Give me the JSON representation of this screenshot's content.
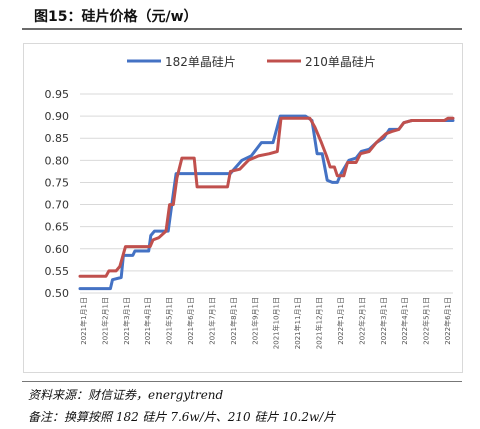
{
  "figure": {
    "title": "图15：硅片价格（元/w）"
  },
  "notes": {
    "source": "资料来源：财信证券，energytrend",
    "remark": "备注：换算按照 182 硅片 7.6w/片、210 硅片 10.2w/片"
  },
  "chart_data": {
    "type": "line",
    "title": "",
    "xlabel": "",
    "ylabel": "",
    "ylim": [
      0.5,
      0.95
    ],
    "yticks": [
      "0.50",
      "0.55",
      "0.60",
      "0.65",
      "0.70",
      "0.75",
      "0.80",
      "0.85",
      "0.90",
      "0.95"
    ],
    "grid": true,
    "legend_position": "top",
    "x_tick_labels": [
      "2021年1月1日",
      "2021年2月1日",
      "2021年3月1日",
      "2021年4月1日",
      "2021年5月1日",
      "2021年6月1日",
      "2021年7月1日",
      "2021年8月1日",
      "2021年9月1日",
      "2021年10月1日",
      "2021年11月1日",
      "2021年12月1日",
      "2022年1月1日",
      "2022年2月1日",
      "2022年3月1日",
      "2022年4月1日",
      "2022年5月1日",
      "2022年6月1日"
    ],
    "x_start": "2021-01-01",
    "x_end": "2022-06-01",
    "series": [
      {
        "name": "182单晶硅片",
        "color": "#4472c4",
        "points": [
          [
            "2021-01-01",
            0.51
          ],
          [
            "2021-02-12",
            0.51
          ],
          [
            "2021-02-15",
            0.53
          ],
          [
            "2021-02-27",
            0.535
          ],
          [
            "2021-03-02",
            0.585
          ],
          [
            "2021-03-15",
            0.585
          ],
          [
            "2021-03-18",
            0.595
          ],
          [
            "2021-04-06",
            0.595
          ],
          [
            "2021-04-09",
            0.63
          ],
          [
            "2021-04-14",
            0.64
          ],
          [
            "2021-05-03",
            0.64
          ],
          [
            "2021-05-08",
            0.7
          ],
          [
            "2021-05-14",
            0.77
          ],
          [
            "2021-06-20",
            0.77
          ],
          [
            "2021-06-28",
            0.77
          ],
          [
            "2021-07-28",
            0.77
          ],
          [
            "2021-08-02",
            0.78
          ],
          [
            "2021-08-13",
            0.8
          ],
          [
            "2021-08-26",
            0.81
          ],
          [
            "2021-09-09",
            0.84
          ],
          [
            "2021-09-25",
            0.84
          ],
          [
            "2021-10-05",
            0.9
          ],
          [
            "2021-11-09",
            0.9
          ],
          [
            "2021-11-18",
            0.89
          ],
          [
            "2021-11-25",
            0.815
          ],
          [
            "2021-12-02",
            0.815
          ],
          [
            "2021-12-09",
            0.755
          ],
          [
            "2021-12-16",
            0.75
          ],
          [
            "2021-12-23",
            0.75
          ],
          [
            "2021-12-28",
            0.77
          ],
          [
            "2022-01-08",
            0.8
          ],
          [
            "2022-01-18",
            0.805
          ],
          [
            "2022-01-25",
            0.82
          ],
          [
            "2022-02-05",
            0.825
          ],
          [
            "2022-02-15",
            0.84
          ],
          [
            "2022-02-25",
            0.85
          ],
          [
            "2022-03-05",
            0.87
          ],
          [
            "2022-03-18",
            0.87
          ],
          [
            "2022-03-25",
            0.885
          ],
          [
            "2022-04-05",
            0.89
          ],
          [
            "2022-06-01",
            0.89
          ]
        ]
      },
      {
        "name": "210单晶硅片",
        "color": "#c0504d",
        "points": [
          [
            "2021-01-01",
            0.538
          ],
          [
            "2021-02-06",
            0.538
          ],
          [
            "2021-02-10",
            0.55
          ],
          [
            "2021-02-20",
            0.55
          ],
          [
            "2021-02-25",
            0.56
          ],
          [
            "2021-03-05",
            0.605
          ],
          [
            "2021-04-08",
            0.605
          ],
          [
            "2021-04-12",
            0.62
          ],
          [
            "2021-04-20",
            0.625
          ],
          [
            "2021-04-30",
            0.64
          ],
          [
            "2021-05-05",
            0.7
          ],
          [
            "2021-05-10",
            0.7
          ],
          [
            "2021-05-15",
            0.76
          ],
          [
            "2021-05-22",
            0.805
          ],
          [
            "2021-06-08",
            0.805
          ],
          [
            "2021-06-12",
            0.74
          ],
          [
            "2021-07-24",
            0.74
          ],
          [
            "2021-07-28",
            0.775
          ],
          [
            "2021-08-10",
            0.78
          ],
          [
            "2021-08-22",
            0.8
          ],
          [
            "2021-09-05",
            0.81
          ],
          [
            "2021-09-20",
            0.815
          ],
          [
            "2021-10-01",
            0.82
          ],
          [
            "2021-10-06",
            0.895
          ],
          [
            "2021-11-15",
            0.895
          ],
          [
            "2021-11-22",
            0.875
          ],
          [
            "2021-12-01",
            0.84
          ],
          [
            "2021-12-08",
            0.81
          ],
          [
            "2021-12-13",
            0.785
          ],
          [
            "2021-12-19",
            0.785
          ],
          [
            "2021-12-23",
            0.765
          ],
          [
            "2022-01-01",
            0.765
          ],
          [
            "2022-01-06",
            0.795
          ],
          [
            "2022-01-18",
            0.795
          ],
          [
            "2022-01-24",
            0.815
          ],
          [
            "2022-02-05",
            0.82
          ],
          [
            "2022-02-15",
            0.84
          ],
          [
            "2022-02-28",
            0.86
          ],
          [
            "2022-03-08",
            0.865
          ],
          [
            "2022-03-18",
            0.87
          ],
          [
            "2022-03-25",
            0.885
          ],
          [
            "2022-04-05",
            0.89
          ],
          [
            "2022-05-20",
            0.89
          ],
          [
            "2022-05-25",
            0.895
          ],
          [
            "2022-06-01",
            0.895
          ]
        ]
      }
    ]
  }
}
